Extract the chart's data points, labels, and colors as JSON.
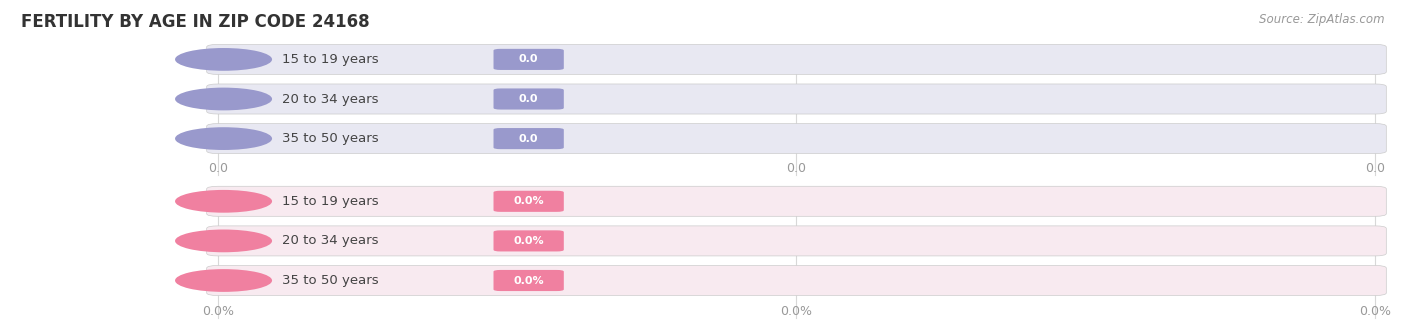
{
  "title": "FERTILITY BY AGE IN ZIP CODE 24168",
  "source": "Source: ZipAtlas.com",
  "top_bars": {
    "labels": [
      "15 to 19 years",
      "20 to 34 years",
      "35 to 50 years"
    ],
    "values": [
      0.0,
      0.0,
      0.0
    ],
    "bar_bg_color": "#e8e8f2",
    "value_box_color": "#9999cc",
    "label_color": "#444444",
    "value_text_color": "#ffffff",
    "circle_color": "#9999cc",
    "x_tick_labels": [
      "0.0",
      "0.0",
      "0.0"
    ]
  },
  "bottom_bars": {
    "labels": [
      "15 to 19 years",
      "20 to 34 years",
      "35 to 50 years"
    ],
    "values": [
      0.0,
      0.0,
      0.0
    ],
    "bar_bg_color": "#f8eaf0",
    "value_box_color": "#f080a0",
    "label_color": "#444444",
    "value_text_color": "#ffffff",
    "circle_color": "#f080a0",
    "x_tick_labels": [
      "0.0%",
      "0.0%",
      "0.0%"
    ]
  },
  "bg_color": "#ffffff",
  "grid_color": "#d8d8d8"
}
